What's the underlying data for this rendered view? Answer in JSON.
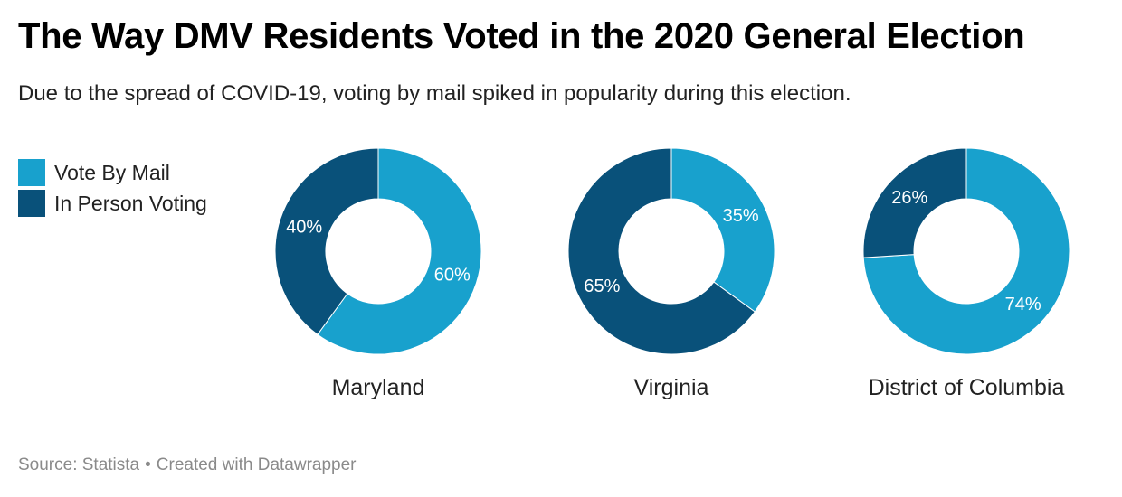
{
  "title": "The Way DMV Residents Voted in the 2020 General Election",
  "subtitle": "Due to the spread of COVID-19, voting by mail spiked in popularity during this election.",
  "legend": [
    {
      "label": "Vote By Mail",
      "color": "#18a1cd"
    },
    {
      "label": "In Person Voting",
      "color": "#09517a"
    }
  ],
  "footer": {
    "source": "Source: Statista",
    "separator": "•",
    "credit": "Created with Datawrapper"
  },
  "chart_data": [
    {
      "type": "pie",
      "donut": true,
      "title": "Maryland",
      "series": [
        {
          "name": "Vote By Mail",
          "value": 60,
          "label": "60%",
          "color": "#18a1cd"
        },
        {
          "name": "In Person Voting",
          "value": 40,
          "label": "40%",
          "color": "#09517a"
        }
      ]
    },
    {
      "type": "pie",
      "donut": true,
      "title": "Virginia",
      "series": [
        {
          "name": "Vote By Mail",
          "value": 35,
          "label": "35%",
          "color": "#18a1cd"
        },
        {
          "name": "In Person Voting",
          "value": 65,
          "label": "65%",
          "color": "#09517a"
        }
      ]
    },
    {
      "type": "pie",
      "donut": true,
      "title": "District of Columbia",
      "series": [
        {
          "name": "Vote By Mail",
          "value": 74,
          "label": "74%",
          "color": "#18a1cd"
        },
        {
          "name": "In Person Voting",
          "value": 26,
          "label": "26%",
          "color": "#09517a"
        }
      ]
    }
  ]
}
